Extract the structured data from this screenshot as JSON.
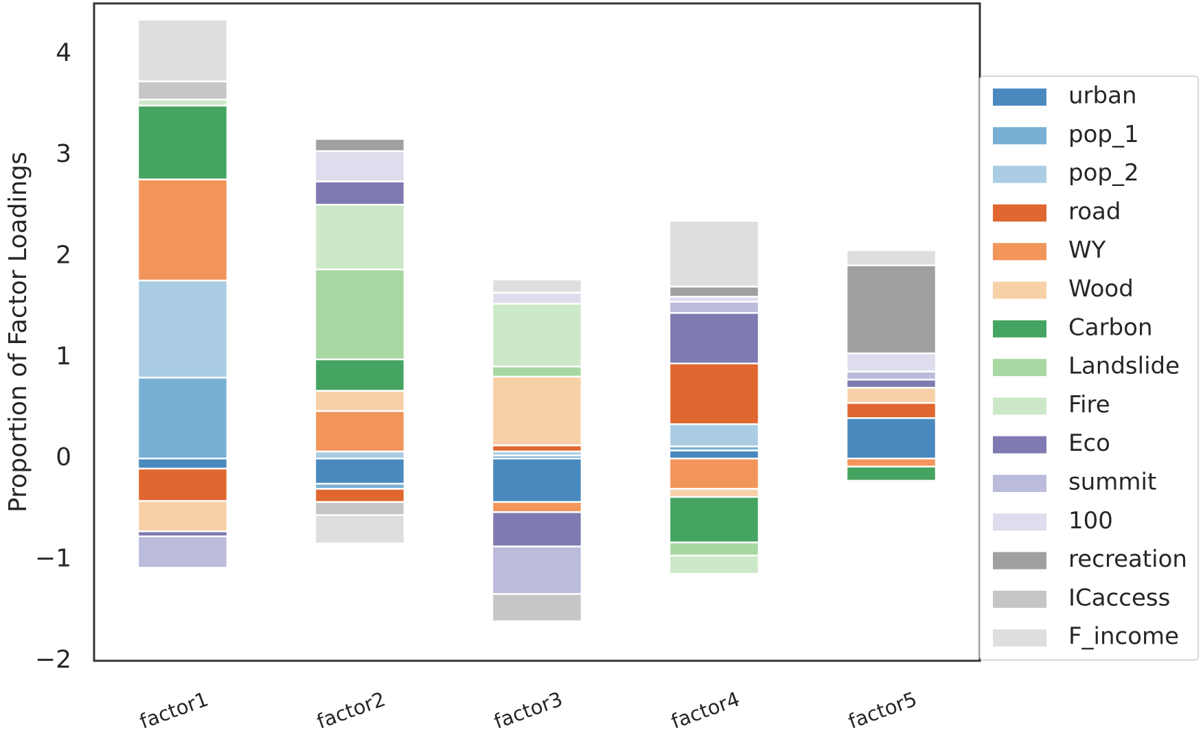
{
  "chart_data": {
    "type": "bar",
    "stacked": true,
    "title": "",
    "xlabel": "",
    "ylabel": "Proportion of Factor Loadings",
    "ylim": [
      -2,
      4.5
    ],
    "yticks": [
      -2,
      -1,
      0,
      1,
      2,
      3,
      4
    ],
    "ytick_labels": [
      "−2",
      "−1",
      "0",
      "1",
      "2",
      "3",
      "4"
    ],
    "grid": false,
    "legend_position": "right",
    "categories": [
      "factor1",
      "factor2",
      "factor3",
      "factor4",
      "factor5"
    ],
    "series": [
      {
        "name": "urban",
        "color": "#4a89bd",
        "values": [
          -0.1,
          -0.25,
          -0.43,
          0.08,
          0.4
        ]
      },
      {
        "name": "pop_1",
        "color": "#78b0d5",
        "values": [
          0.8,
          -0.05,
          0.03,
          0.04,
          0.0
        ]
      },
      {
        "name": "pop_2",
        "color": "#aacde3",
        "values": [
          0.96,
          0.07,
          0.04,
          0.22,
          0.0
        ]
      },
      {
        "name": "road",
        "color": "#e0672f",
        "values": [
          -0.32,
          -0.13,
          0.06,
          0.6,
          0.15
        ]
      },
      {
        "name": "WY",
        "color": "#f2955a",
        "values": [
          1.0,
          0.4,
          -0.1,
          -0.3,
          -0.08
        ]
      },
      {
        "name": "Wood",
        "color": "#f8d0a8",
        "values": [
          -0.3,
          0.2,
          0.68,
          -0.08,
          0.15
        ]
      },
      {
        "name": "Carbon",
        "color": "#45a461",
        "values": [
          0.73,
          0.31,
          0.0,
          -0.45,
          -0.14
        ]
      },
      {
        "name": "Landslide",
        "color": "#a7d8a2",
        "values": [
          0.0,
          0.89,
          0.1,
          -0.13,
          0.0
        ]
      },
      {
        "name": "Fire",
        "color": "#cde8c8",
        "values": [
          0.06,
          0.64,
          0.62,
          -0.18,
          -0.02
        ]
      },
      {
        "name": "Eco",
        "color": "#7f7ab1",
        "values": [
          -0.05,
          0.23,
          -0.34,
          0.5,
          0.08
        ]
      },
      {
        "name": "summit",
        "color": "#bbbbdb",
        "values": [
          -0.31,
          0.0,
          -0.47,
          0.11,
          0.08
        ]
      },
      {
        "name": "100",
        "color": "#dddded",
        "values": [
          0.0,
          0.3,
          0.11,
          0.05,
          0.18
        ]
      },
      {
        "name": "recreation",
        "color": "#a0a0a0",
        "values": [
          0.0,
          0.12,
          0.0,
          0.1,
          0.87
        ]
      },
      {
        "name": "ICaccess",
        "color": "#c6c6c6",
        "values": [
          0.18,
          -0.13,
          -0.27,
          0.0,
          0.0
        ]
      },
      {
        "name": "F_income",
        "color": "#dedede",
        "values": [
          0.61,
          -0.28,
          0.13,
          0.65,
          0.15
        ]
      }
    ]
  }
}
